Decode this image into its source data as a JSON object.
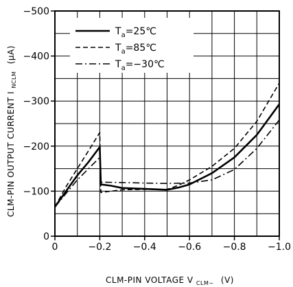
{
  "chart_data": {
    "type": "line",
    "xlabel": "CLM-PIN VOLTAGE  V",
    "xlabel_sub": "CLM−",
    "xlabel_unit": "(V)",
    "ylabel": "CLM-PIN OUTPUT CURRENT  I",
    "ylabel_sub": "NCLM",
    "ylabel_unit": "(μA)",
    "xlim": [
      0,
      -1.0
    ],
    "ylim": [
      0,
      -500
    ],
    "x_ticks": [
      {
        "value": 0,
        "label": "0"
      },
      {
        "value": -0.2,
        "label": "−0.2"
      },
      {
        "value": -0.4,
        "label": "−0.4"
      },
      {
        "value": -0.6,
        "label": "−0.6"
      },
      {
        "value": -0.8,
        "label": "−0.8"
      },
      {
        "value": -1.0,
        "label": "−1.0"
      }
    ],
    "y_ticks": [
      {
        "value": 0,
        "label": "0"
      },
      {
        "value": -100,
        "label": "−100"
      },
      {
        "value": -200,
        "label": "−200"
      },
      {
        "value": -300,
        "label": "−300"
      },
      {
        "value": -400,
        "label": "−400"
      },
      {
        "value": -500,
        "label": "−500"
      }
    ],
    "grid": true,
    "legend_position": "top-left",
    "series": [
      {
        "name_main": "T",
        "name_sub": "a",
        "name_value": "=25℃",
        "line_style": "solid",
        "points": [
          [
            0,
            -65
          ],
          [
            -0.05,
            -100
          ],
          [
            -0.1,
            -135
          ],
          [
            -0.15,
            -165
          ],
          [
            -0.2,
            -198
          ],
          [
            -0.205,
            -115
          ],
          [
            -0.25,
            -112
          ],
          [
            -0.3,
            -107
          ],
          [
            -0.4,
            -105
          ],
          [
            -0.5,
            -103
          ],
          [
            -0.55,
            -108
          ],
          [
            -0.6,
            -115
          ],
          [
            -0.7,
            -140
          ],
          [
            -0.8,
            -175
          ],
          [
            -0.9,
            -225
          ],
          [
            -1.0,
            -293
          ]
        ]
      },
      {
        "name_main": "T",
        "name_sub": "a",
        "name_value": "=85℃",
        "line_style": "dashed",
        "points": [
          [
            0,
            -65
          ],
          [
            -0.05,
            -110
          ],
          [
            -0.1,
            -150
          ],
          [
            -0.15,
            -190
          ],
          [
            -0.2,
            -230
          ],
          [
            -0.205,
            -97
          ],
          [
            -0.25,
            -100
          ],
          [
            -0.3,
            -103
          ],
          [
            -0.4,
            -104
          ],
          [
            -0.5,
            -104
          ],
          [
            -0.55,
            -113
          ],
          [
            -0.6,
            -125
          ],
          [
            -0.7,
            -155
          ],
          [
            -0.8,
            -195
          ],
          [
            -0.9,
            -255
          ],
          [
            -1.0,
            -340
          ]
        ]
      },
      {
        "name_main": "T",
        "name_sub": "a",
        "name_value": "=−30℃",
        "line_style": "dashdot",
        "points": [
          [
            0,
            -65
          ],
          [
            -0.05,
            -95
          ],
          [
            -0.1,
            -125
          ],
          [
            -0.15,
            -150
          ],
          [
            -0.2,
            -175
          ],
          [
            -0.205,
            -120
          ],
          [
            -0.3,
            -119
          ],
          [
            -0.4,
            -118
          ],
          [
            -0.5,
            -117
          ],
          [
            -0.6,
            -118
          ],
          [
            -0.7,
            -125
          ],
          [
            -0.8,
            -148
          ],
          [
            -0.9,
            -195
          ],
          [
            -1.0,
            -258
          ]
        ]
      }
    ]
  }
}
